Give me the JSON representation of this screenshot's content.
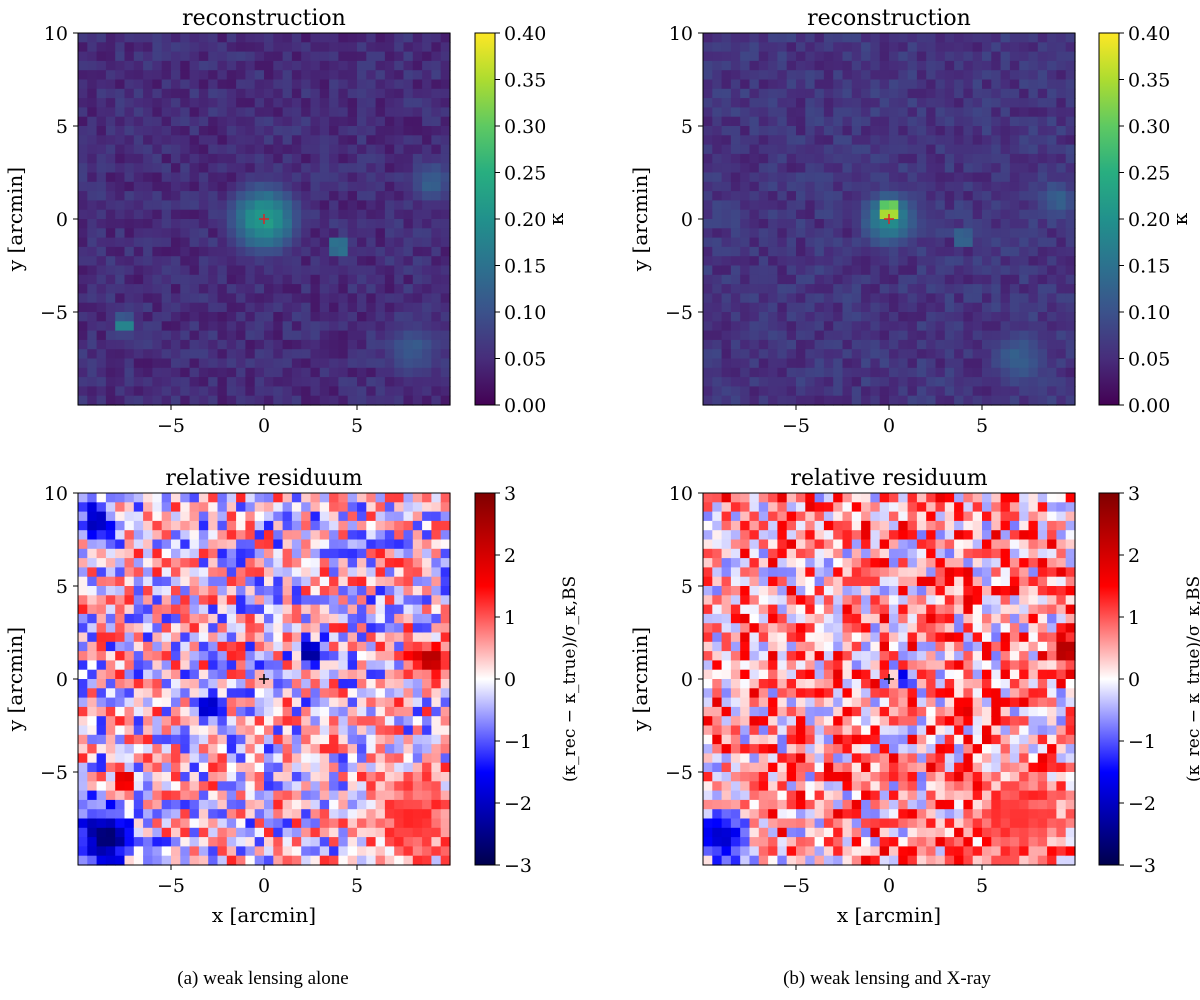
{
  "chart_data": [
    {
      "type": "heatmap",
      "title": "reconstruction",
      "xlabel": "",
      "ylabel": "y [arcmin]",
      "xlim": [
        -10,
        10
      ],
      "ylim": [
        -10,
        10
      ],
      "xticks": [
        -5,
        0,
        5
      ],
      "xticklabels": [
        "−5",
        "0",
        "5"
      ],
      "yticks": [
        -5,
        0,
        5,
        10
      ],
      "yticklabels": [
        "−5",
        "0",
        "5",
        "10"
      ],
      "colormap": "viridis",
      "colorbar": {
        "label": "κ",
        "min": 0.0,
        "max": 0.4,
        "ticks": [
          "0.00",
          "0.05",
          "0.10",
          "0.15",
          "0.20",
          "0.25",
          "0.30",
          "0.35",
          "0.40"
        ]
      },
      "background_level": 0.04,
      "features": [
        {
          "x": 0,
          "y": 0,
          "kappa": 0.22,
          "extent": 2.0
        },
        {
          "x": 4,
          "y": -1.5,
          "kappa": 0.2,
          "extent": 0.6
        },
        {
          "x": -7.5,
          "y": -5.7,
          "kappa": 0.22,
          "extent": 0.6
        },
        {
          "x": 9,
          "y": 2,
          "kappa": 0.12,
          "extent": 1.5
        },
        {
          "x": 8,
          "y": -7,
          "kappa": 0.11,
          "extent": 2.0
        }
      ],
      "marker": {
        "x": 0,
        "y": 0,
        "symbol": "+",
        "color": "#d62728"
      }
    },
    {
      "type": "heatmap",
      "title": "reconstruction",
      "xlabel": "",
      "ylabel": "y [arcmin]",
      "xlim": [
        -10,
        10
      ],
      "ylim": [
        -10,
        10
      ],
      "xticks": [
        -5,
        0,
        5
      ],
      "xticklabels": [
        "−5",
        "0",
        "5"
      ],
      "yticks": [
        -5,
        0,
        5,
        10
      ],
      "yticklabels": [
        "−5",
        "0",
        "5",
        "10"
      ],
      "colormap": "viridis",
      "colorbar": {
        "label": "κ",
        "min": 0.0,
        "max": 0.4,
        "ticks": [
          "0.00",
          "0.05",
          "0.10",
          "0.15",
          "0.20",
          "0.25",
          "0.30",
          "0.35",
          "0.40"
        ]
      },
      "background_level": 0.05,
      "features": [
        {
          "x": 0,
          "y": 0.4,
          "kappa": 0.4,
          "extent": 0.8
        },
        {
          "x": 0,
          "y": 0,
          "kappa": 0.18,
          "extent": 1.8
        },
        {
          "x": 4,
          "y": -1,
          "kappa": 0.17,
          "extent": 0.6
        },
        {
          "x": 9,
          "y": 1,
          "kappa": 0.12,
          "extent": 1.5
        },
        {
          "x": 7,
          "y": -7.5,
          "kappa": 0.12,
          "extent": 2.0
        }
      ],
      "marker": {
        "x": 0,
        "y": 0,
        "symbol": "+",
        "color": "#d62728"
      }
    },
    {
      "type": "heatmap",
      "title": "relative residuum",
      "xlabel": "x [arcmin]",
      "ylabel": "y [arcmin]",
      "xlim": [
        -10,
        10
      ],
      "ylim": [
        -10,
        10
      ],
      "xticks": [
        -5,
        0,
        5
      ],
      "xticklabels": [
        "−5",
        "0",
        "5"
      ],
      "yticks": [
        -5,
        0,
        5,
        10
      ],
      "yticklabels": [
        "−5",
        "0",
        "5",
        "10"
      ],
      "colormap": "seismic",
      "colorbar": {
        "label": "(κ_rec − κ_true)/σ_κ,BS",
        "min": -3,
        "max": 3,
        "ticks": [
          "−3",
          "−2",
          "−1",
          "0",
          "1",
          "2",
          "3"
        ]
      },
      "background_level": 0.0,
      "features": [
        {
          "x": -8.5,
          "y": -8.5,
          "value": -2.8,
          "extent": 1.5
        },
        {
          "x": -9,
          "y": 8.5,
          "value": -2.2,
          "extent": 1.0
        },
        {
          "x": 2.5,
          "y": 1.5,
          "value": -2.6,
          "extent": 0.7
        },
        {
          "x": -3,
          "y": -1.5,
          "value": -2.2,
          "extent": 0.8
        },
        {
          "x": 9,
          "y": 1.0,
          "value": 2.5,
          "extent": 1.0
        },
        {
          "x": -7.5,
          "y": -5.5,
          "value": 2.6,
          "extent": 0.6
        },
        {
          "x": 8,
          "y": -7.5,
          "value": 1.3,
          "extent": 2.5
        }
      ],
      "marker": {
        "x": 0,
        "y": 0,
        "symbol": "+",
        "color": "#000000"
      }
    },
    {
      "type": "heatmap",
      "title": "relative residuum",
      "xlabel": "x [arcmin]",
      "ylabel": "y [arcmin]",
      "xlim": [
        -10,
        10
      ],
      "ylim": [
        -10,
        10
      ],
      "xticks": [
        -5,
        0,
        5
      ],
      "xticklabels": [
        "−5",
        "0",
        "5"
      ],
      "yticks": [
        -5,
        0,
        5,
        10
      ],
      "yticklabels": [
        "−5",
        "0",
        "5",
        "10"
      ],
      "colormap": "seismic",
      "colorbar": {
        "label": "(κ_rec − κ_true)/σ_κ,BS",
        "min": -3,
        "max": 3,
        "ticks": [
          "−3",
          "−2",
          "−1",
          "0",
          "1",
          "2",
          "3"
        ]
      },
      "background_level": 0.5,
      "features": [
        {
          "x": -9,
          "y": -8.5,
          "value": -2.0,
          "extent": 1.5
        },
        {
          "x": 0.8,
          "y": 0,
          "value": -2.0,
          "extent": 0.5
        },
        {
          "x": 9.5,
          "y": 1.5,
          "value": 2.6,
          "extent": 0.8
        },
        {
          "x": 4,
          "y": -1.5,
          "value": 2.4,
          "extent": 0.6
        },
        {
          "x": 7,
          "y": -7.5,
          "value": 1.2,
          "extent": 2.5
        }
      ],
      "marker": {
        "x": 0,
        "y": 0,
        "symbol": "+",
        "color": "#000000"
      }
    }
  ],
  "captions": [
    "(a) weak lensing alone",
    "(b) weak lensing and X-ray"
  ]
}
